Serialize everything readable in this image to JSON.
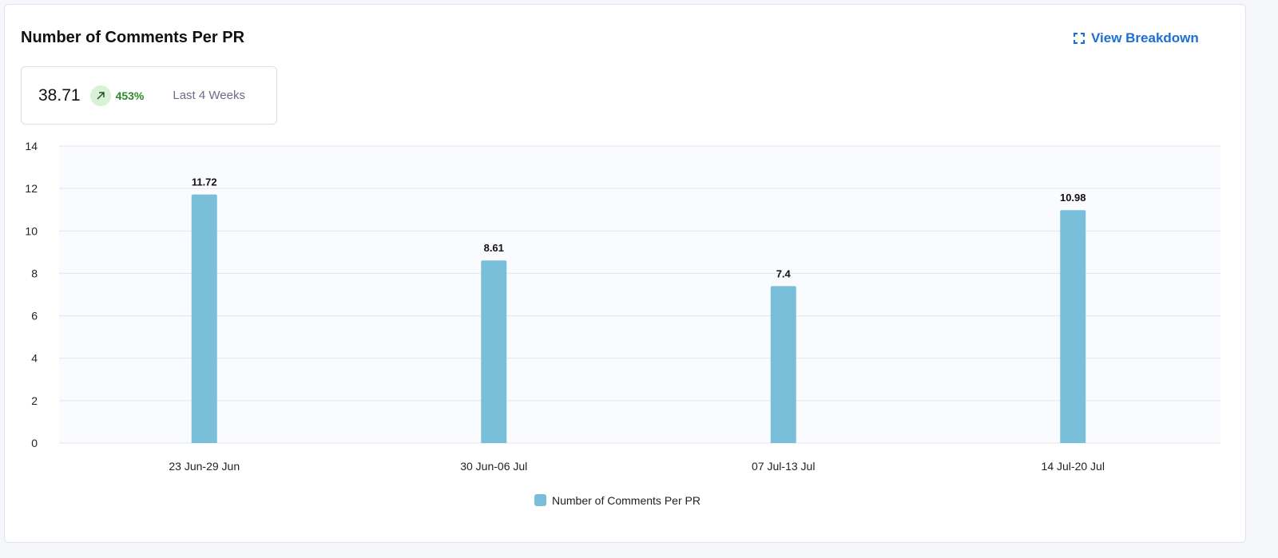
{
  "header": {
    "title": "Number of Comments Per PR",
    "breakdown_label": "View Breakdown",
    "breakdown_icon": "expand-icon"
  },
  "summary": {
    "value": "38.71",
    "trend_icon": "arrow-up-right-icon",
    "change": "453%",
    "period": "Last 4 Weeks",
    "trend_color": "#2d8a2a"
  },
  "chart_data": {
    "type": "bar",
    "categories": [
      "23 Jun-29 Jun",
      "30 Jun-06 Jul",
      "07 Jul-13 Jul",
      "14 Jul-20 Jul"
    ],
    "series": [
      {
        "name": "Number of Comments Per PR",
        "values": [
          11.72,
          8.61,
          7.4,
          10.98
        ],
        "color": "#7abfda"
      }
    ],
    "data_labels": [
      "11.72",
      "8.61",
      "7.4",
      "10.98"
    ],
    "ylim": [
      0,
      14
    ],
    "yticks": [
      0,
      2,
      4,
      6,
      8,
      10,
      12,
      14
    ],
    "grid": true,
    "legend": "bottom"
  }
}
